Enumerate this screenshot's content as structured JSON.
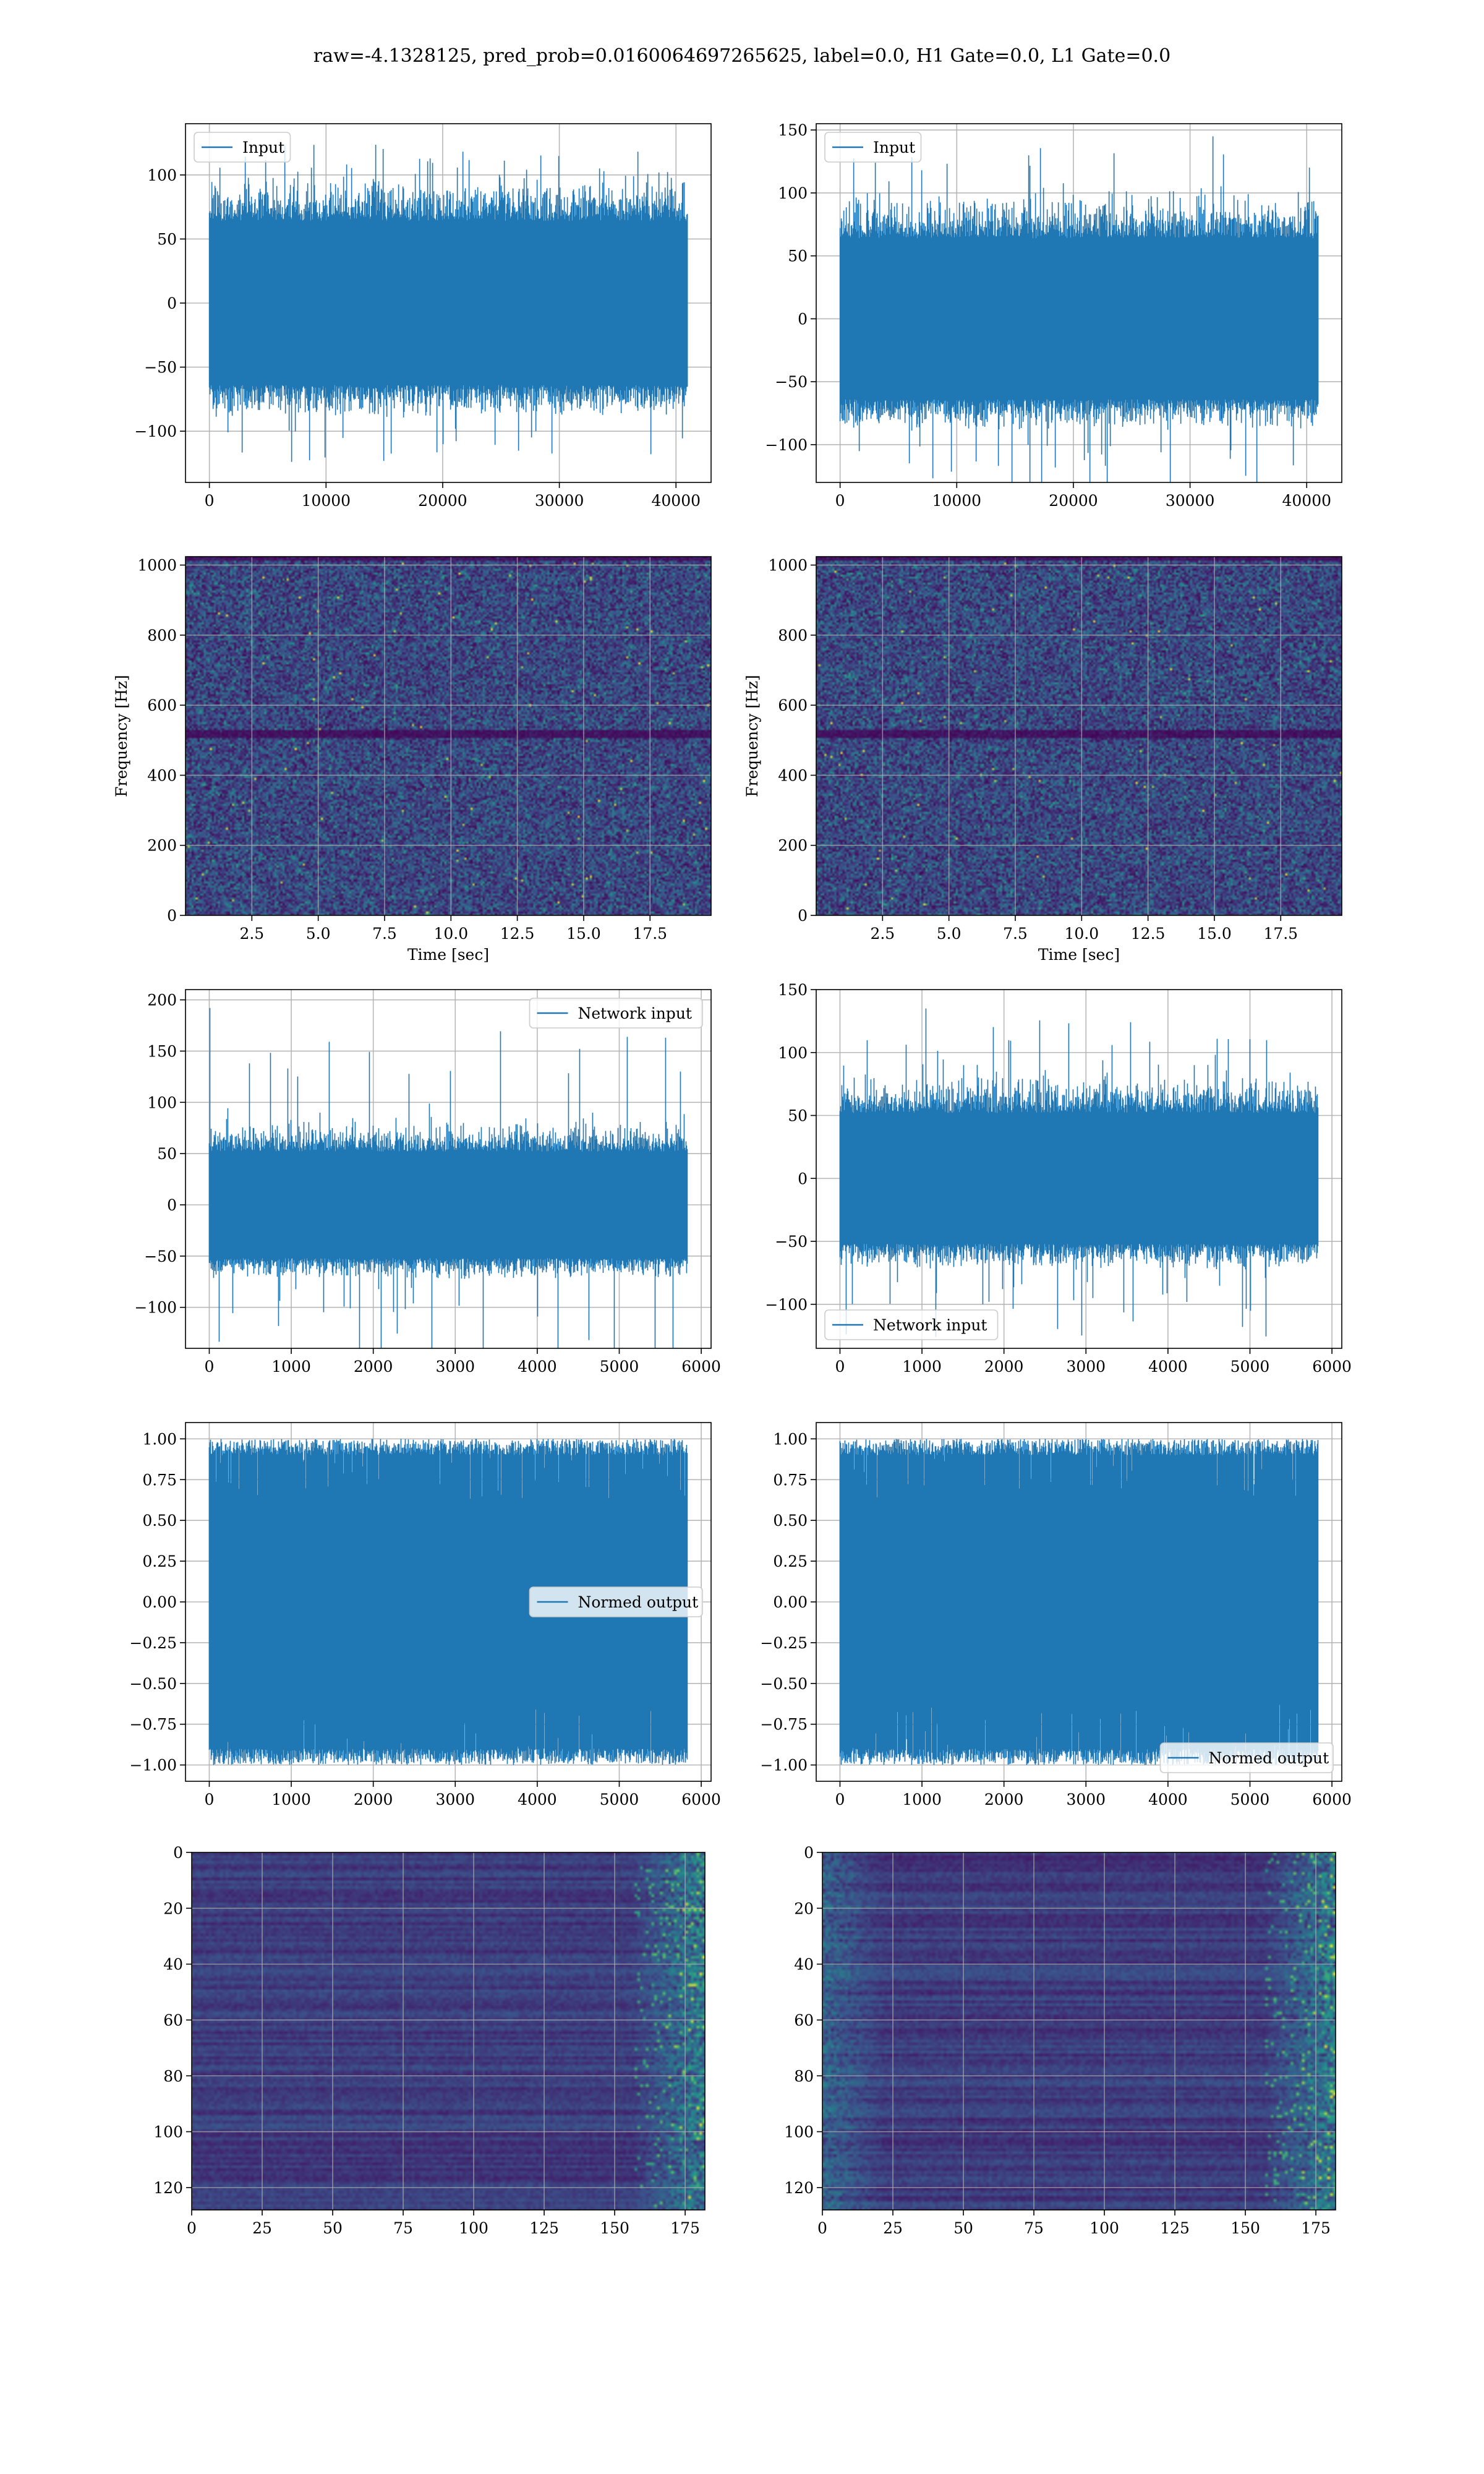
{
  "figure": {
    "suptitle": "raw=-4.1328125, pred_prob=0.0160064697265625, label=0.0, H1 Gate=0.0, L1 Gate=0.0"
  },
  "colors": {
    "line": "#1f77b4",
    "grid": "#b0b0b0",
    "viridis": [
      "#440154",
      "#3b528b",
      "#21908c",
      "#5dc863",
      "#fde725"
    ]
  },
  "chart_data": [
    {
      "id": "input-left",
      "type": "line",
      "legend_loc": "upper-left",
      "series": [
        {
          "name": "Input",
          "n": 40960,
          "amp": 32,
          "spike": 130
        }
      ],
      "xlim": [
        -2048,
        43008
      ],
      "ylim": [
        -140,
        140
      ],
      "xticks": [
        0,
        10000,
        20000,
        30000,
        40000
      ],
      "yticks": [
        -100,
        -50,
        0,
        50,
        100
      ],
      "xticklabels": [
        "0",
        "10000",
        "20000",
        "30000",
        "40000"
      ],
      "yticklabels": [
        "−100",
        "−50",
        "0",
        "50",
        "100"
      ],
      "xlabel": "",
      "ylabel": "",
      "grid": true
    },
    {
      "id": "input-right",
      "type": "line",
      "legend_loc": "upper-left",
      "series": [
        {
          "name": "Input",
          "n": 40960,
          "amp": 32,
          "spike": 145
        }
      ],
      "xlim": [
        -2048,
        43008
      ],
      "ylim": [
        -130,
        155
      ],
      "xticks": [
        0,
        10000,
        20000,
        30000,
        40000
      ],
      "yticks": [
        -100,
        -50,
        0,
        50,
        100,
        150
      ],
      "xticklabels": [
        "0",
        "10000",
        "20000",
        "30000",
        "40000"
      ],
      "yticklabels": [
        "−100",
        "−50",
        "0",
        "50",
        "100",
        "150"
      ],
      "xlabel": "",
      "ylabel": "",
      "grid": true
    },
    {
      "id": "spectrogram-left",
      "type": "heatmap",
      "variant": "spectrogram",
      "xlim": [
        0,
        19.8
      ],
      "ylim": [
        0,
        1024
      ],
      "xticks": [
        2.5,
        5.0,
        7.5,
        10.0,
        12.5,
        15.0,
        17.5
      ],
      "yticks": [
        0,
        200,
        400,
        600,
        800,
        1000
      ],
      "xticklabels": [
        "2.5",
        "5.0",
        "7.5",
        "10.0",
        "12.5",
        "15.0",
        "17.5"
      ],
      "yticklabels": [
        "0",
        "200",
        "400",
        "600",
        "800",
        "1000"
      ],
      "xlabel": "Time [sec]",
      "ylabel": "Frequency [Hz]",
      "grid": true
    },
    {
      "id": "spectrogram-right",
      "type": "heatmap",
      "variant": "spectrogram",
      "xlim": [
        0,
        19.8
      ],
      "ylim": [
        0,
        1024
      ],
      "xticks": [
        2.5,
        5.0,
        7.5,
        10.0,
        12.5,
        15.0,
        17.5
      ],
      "yticks": [
        0,
        200,
        400,
        600,
        800,
        1000
      ],
      "xticklabels": [
        "2.5",
        "5.0",
        "7.5",
        "10.0",
        "12.5",
        "15.0",
        "17.5"
      ],
      "yticklabels": [
        "0",
        "200",
        "400",
        "600",
        "800",
        "1000"
      ],
      "xlabel": "Time [sec]",
      "ylabel": "Frequency [Hz]",
      "grid": true
    },
    {
      "id": "network-input-left",
      "type": "line",
      "legend_loc": "upper-right",
      "series": [
        {
          "name": "Network input",
          "n": 5830,
          "amp": 26,
          "spike": 192
        }
      ],
      "xlim": [
        -290,
        6120
      ],
      "ylim": [
        -140,
        210
      ],
      "xticks": [
        0,
        1000,
        2000,
        3000,
        4000,
        5000,
        6000
      ],
      "yticks": [
        -100,
        -50,
        0,
        50,
        100,
        150,
        200
      ],
      "xticklabels": [
        "0",
        "1000",
        "2000",
        "3000",
        "4000",
        "5000",
        "6000"
      ],
      "yticklabels": [
        "−100",
        "−50",
        "0",
        "50",
        "100",
        "150",
        "200"
      ],
      "xlabel": "",
      "ylabel": "",
      "grid": true
    },
    {
      "id": "network-input-right",
      "type": "line",
      "legend_loc": "lower-left",
      "series": [
        {
          "name": "Network input",
          "n": 5830,
          "amp": 26,
          "spike": 135
        }
      ],
      "xlim": [
        -290,
        6120
      ],
      "ylim": [
        -135,
        150
      ],
      "xticks": [
        0,
        1000,
        2000,
        3000,
        4000,
        5000,
        6000
      ],
      "yticks": [
        -100,
        -50,
        0,
        50,
        100,
        150
      ],
      "xticklabels": [
        "0",
        "1000",
        "2000",
        "3000",
        "4000",
        "5000",
        "6000"
      ],
      "yticklabels": [
        "−100",
        "−50",
        "0",
        "50",
        "100",
        "150"
      ],
      "xlabel": "",
      "ylabel": "",
      "grid": true
    },
    {
      "id": "normed-output-left",
      "type": "line",
      "legend_loc": "center-right",
      "series": [
        {
          "name": "Normed output",
          "n": 5830,
          "amp": 1.0,
          "spike": 1.0,
          "bounded": true
        }
      ],
      "xlim": [
        -290,
        6120
      ],
      "ylim": [
        -1.1,
        1.1
      ],
      "xticks": [
        0,
        1000,
        2000,
        3000,
        4000,
        5000,
        6000
      ],
      "yticks": [
        -1.0,
        -0.75,
        -0.5,
        -0.25,
        0.0,
        0.25,
        0.5,
        0.75,
        1.0
      ],
      "xticklabels": [
        "0",
        "1000",
        "2000",
        "3000",
        "4000",
        "5000",
        "6000"
      ],
      "yticklabels": [
        "−1.00",
        "−0.75",
        "−0.50",
        "−0.25",
        "0.00",
        "0.25",
        "0.50",
        "0.75",
        "1.00"
      ],
      "xlabel": "",
      "ylabel": "",
      "grid": true
    },
    {
      "id": "normed-output-right",
      "type": "line",
      "legend_loc": "lower-right",
      "series": [
        {
          "name": "Normed output",
          "n": 5830,
          "amp": 1.0,
          "spike": 1.0,
          "bounded": true
        }
      ],
      "xlim": [
        -290,
        6120
      ],
      "ylim": [
        -1.1,
        1.1
      ],
      "xticks": [
        0,
        1000,
        2000,
        3000,
        4000,
        5000,
        6000
      ],
      "yticks": [
        -1.0,
        -0.75,
        -0.5,
        -0.25,
        0.0,
        0.25,
        0.5,
        0.75,
        1.0
      ],
      "xticklabels": [
        "0",
        "1000",
        "2000",
        "3000",
        "4000",
        "5000",
        "6000"
      ],
      "yticklabels": [
        "−1.00",
        "−0.75",
        "−0.50",
        "−0.25",
        "0.00",
        "0.25",
        "0.50",
        "0.75",
        "1.00"
      ],
      "xlabel": "",
      "ylabel": "",
      "grid": true
    },
    {
      "id": "feature-map-left",
      "type": "heatmap",
      "variant": "featuremap",
      "rows": 128,
      "cols": 182,
      "xlim": [
        0,
        182
      ],
      "ylim": [
        128,
        0
      ],
      "xticks": [
        0,
        25,
        50,
        75,
        100,
        125,
        150,
        175
      ],
      "yticks": [
        0,
        20,
        40,
        60,
        80,
        100,
        120
      ],
      "xticklabels": [
        "0",
        "25",
        "50",
        "75",
        "100",
        "125",
        "150",
        "175"
      ],
      "yticklabels": [
        "0",
        "20",
        "40",
        "60",
        "80",
        "100",
        "120"
      ],
      "xlabel": "",
      "ylabel": "",
      "grid": true
    },
    {
      "id": "feature-map-right",
      "type": "heatmap",
      "variant": "featuremap",
      "rows": 128,
      "cols": 182,
      "xlim": [
        0,
        182
      ],
      "ylim": [
        128,
        0
      ],
      "xticks": [
        0,
        25,
        50,
        75,
        100,
        125,
        150,
        175
      ],
      "yticks": [
        0,
        20,
        40,
        60,
        80,
        100,
        120
      ],
      "xticklabels": [
        "0",
        "25",
        "50",
        "75",
        "100",
        "125",
        "150",
        "175"
      ],
      "yticklabels": [
        "0",
        "20",
        "40",
        "60",
        "80",
        "100",
        "120"
      ],
      "xlabel": "",
      "ylabel": "",
      "grid": true
    }
  ]
}
